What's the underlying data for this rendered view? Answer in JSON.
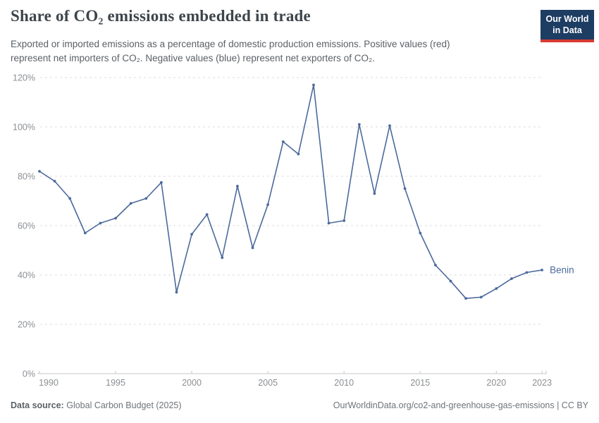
{
  "header": {
    "title": "Share of CO₂ emissions embedded in trade",
    "subtitle_line1": "Exported or imported emissions as a percentage of domestic production emissions. Positive values (red)",
    "subtitle_line2": "represent net importers of CO₂. Negative values (blue) represent net exporters of CO₂.",
    "logo_line1": "Our World",
    "logo_line2": "in Data"
  },
  "footer": {
    "source_label": "Data source:",
    "source_value": "Global Carbon Budget (2025)",
    "attribution": "OurWorldinData.org/co2-and-greenhouse-gas-emissions | CC BY"
  },
  "chart_data": {
    "type": "line",
    "title": "Share of CO₂ emissions embedded in trade",
    "series": [
      {
        "name": "Benin",
        "color": "#4c6a9c",
        "x": [
          1990,
          1991,
          1992,
          1993,
          1994,
          1995,
          1996,
          1997,
          1998,
          1999,
          2000,
          2001,
          2002,
          2003,
          2004,
          2005,
          2006,
          2007,
          2008,
          2009,
          2010,
          2011,
          2012,
          2013,
          2014,
          2015,
          2016,
          2017,
          2018,
          2019,
          2020,
          2021,
          2022,
          2023
        ],
        "values": [
          82,
          78,
          71,
          57,
          61,
          63,
          69,
          71,
          77.5,
          33,
          56.5,
          64.5,
          47,
          76,
          51,
          68.5,
          94,
          89,
          117,
          61,
          62,
          101,
          73,
          100.5,
          75,
          57,
          44,
          37.5,
          30.5,
          31,
          34.5,
          38.5,
          41,
          42
        ]
      }
    ],
    "xlabel": "",
    "ylabel": "",
    "xlim": [
      1990,
      2023
    ],
    "ylim": [
      0,
      120
    ],
    "y_ticks": [
      0,
      20,
      40,
      60,
      80,
      100,
      120
    ],
    "y_tick_suffix": "%",
    "x_ticks": [
      1990,
      1995,
      2000,
      2005,
      2010,
      2015,
      2020,
      2023
    ],
    "grid": "horizontal-dashed",
    "legend_position": "end-of-line",
    "colors": {
      "line": "#4c6a9c",
      "grid": "#dcdcdc",
      "axis": "#c8c8c8",
      "tick_label": "#8b8f93"
    }
  }
}
